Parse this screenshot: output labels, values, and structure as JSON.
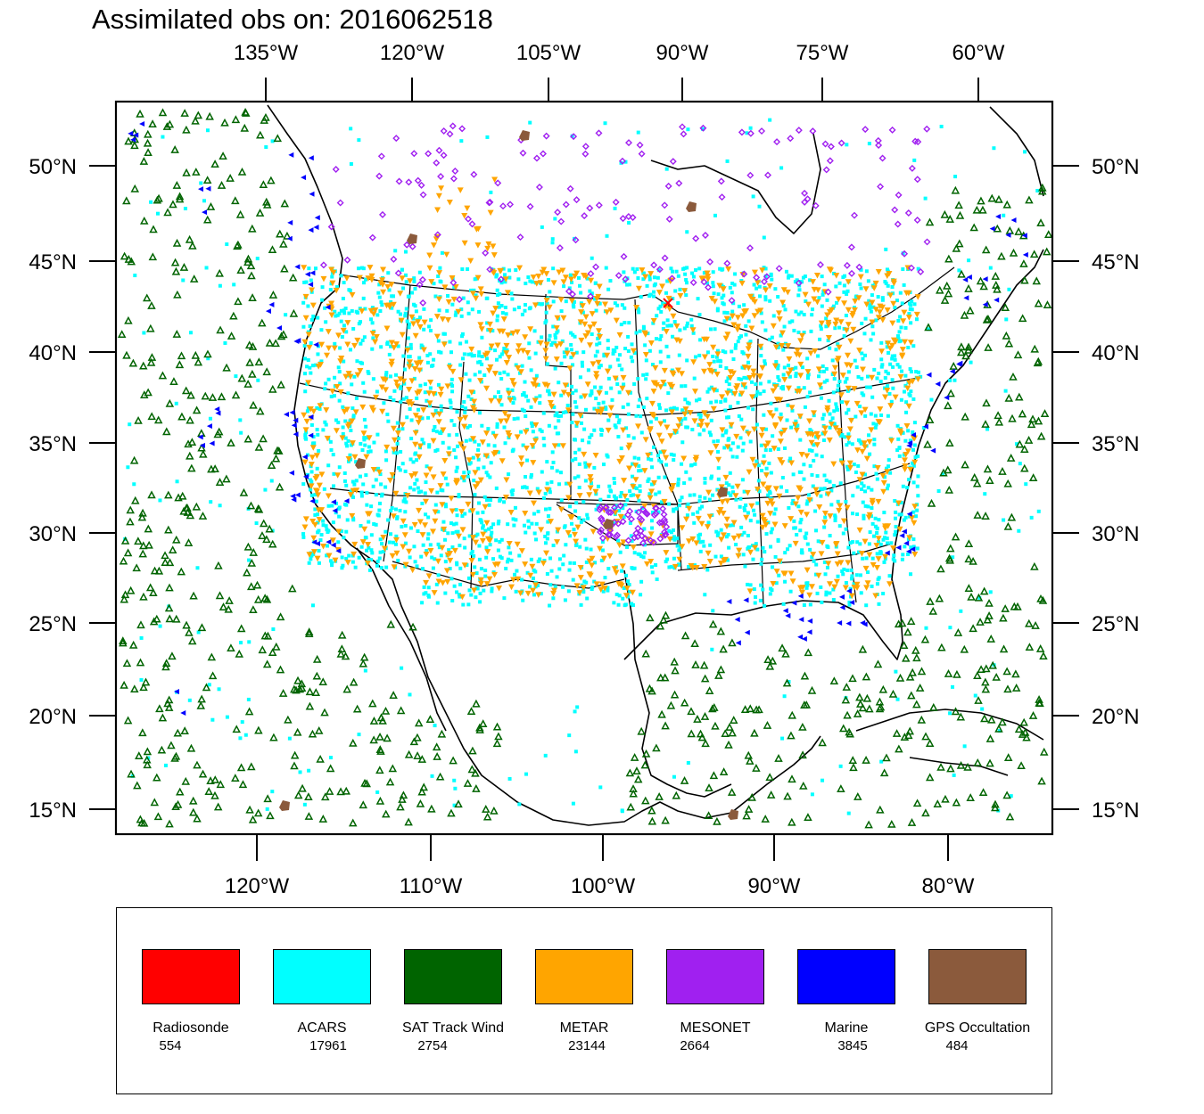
{
  "title": "Assimilated obs on: 2016062518",
  "top_axis_labels": [
    "135°W",
    "120°W",
    "105°W",
    "90°W",
    "75°W",
    "60°W"
  ],
  "bottom_axis_labels": [
    "120°W",
    "110°W",
    "100°W",
    "90°W",
    "80°W"
  ],
  "lat_labels": [
    "50°N",
    "45°N",
    "40°N",
    "35°N",
    "30°N",
    "25°N",
    "20°N",
    "15°N"
  ],
  "legend": [
    {
      "name": "Radiosonde",
      "count": "554",
      "color": "#ff0000"
    },
    {
      "name": "ACARS",
      "count": "17961",
      "color": "#00ffff"
    },
    {
      "name": "SAT Track Wind",
      "count": "2754",
      "color": "#006400"
    },
    {
      "name": "METAR",
      "count": "23144",
      "color": "#ffa500"
    },
    {
      "name": "MESONET",
      "count": "2664",
      "color": "#a020f0"
    },
    {
      "name": "Marine",
      "count": "3845",
      "color": "#0000ff"
    },
    {
      "name": "GPS Occultation",
      "count": "484",
      "color": "#8b5a3c"
    }
  ],
  "colors": {
    "radiosonde": "#ff0000",
    "acars": "#00ffff",
    "sat_track_wind": "#006400",
    "metar": "#ffa500",
    "mesonet": "#a020f0",
    "marine": "#0000ff",
    "gps_occultation": "#8b5a3c",
    "coastline": "#000000"
  }
}
